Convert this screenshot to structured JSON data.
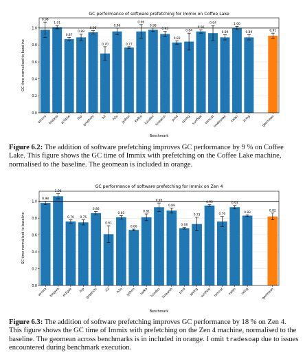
{
  "chart_data": [
    {
      "type": "bar",
      "title": "GC performance of software prefetching for Immix on Coffee Lake",
      "xlabel": "Benchmark",
      "ylabel": "GC time normalised to baseline",
      "ylim": [
        0,
        1.12
      ],
      "yticks": [
        "0.0",
        "0.2",
        "0.4",
        "0.6",
        "0.8",
        "1.0"
      ],
      "grid": true,
      "baseline": 1.0,
      "categories": [
        "avrora",
        "biojava",
        "eclipse",
        "fop",
        "graphchi",
        "h2",
        "h2o",
        "jython",
        "kafka",
        "luindex",
        "lusearch",
        "pmd",
        "spring",
        "sunflow",
        "tomcat",
        "tradesoap",
        "xalan",
        "zxing",
        "geomean"
      ],
      "values": [
        0.98,
        1.01,
        0.87,
        0.89,
        0.95,
        0.7,
        0.96,
        0.77,
        0.96,
        0.98,
        0.93,
        0.83,
        0.84,
        0.96,
        0.94,
        0.89,
        1.0,
        0.89,
        0.91
      ],
      "labels": [
        "0.98",
        "1.01",
        "0.87",
        "0.89",
        "0.95",
        "0.70",
        "0.96",
        "0.77",
        "0.96",
        "0.98",
        "0.93",
        "0.83",
        "0.84",
        "0.96",
        "0.94",
        "0.89",
        "1.00",
        "0.89",
        "0.91"
      ],
      "errors": [
        0.09,
        0.02,
        0.02,
        0.04,
        0.02,
        0.08,
        0.04,
        0.01,
        0.08,
        0.02,
        0.03,
        0.02,
        0.1,
        0.02,
        0.09,
        0.03,
        0.02,
        0.03,
        0.03
      ],
      "colors": {
        "bar": "#1f77b4",
        "highlight": "#ff7f0e",
        "baseline": "#000000"
      }
    },
    {
      "type": "bar",
      "title": "GC performance of software prefetching for Immix on Zen 4",
      "xlabel": "Benchmark",
      "ylabel": "GC time normalised to baseline",
      "ylim": [
        0,
        1.12
      ],
      "yticks": [
        "0.0",
        "0.2",
        "0.4",
        "0.6",
        "0.8",
        "1.0"
      ],
      "grid": true,
      "baseline": 1.0,
      "categories": [
        "avrora",
        "biojava",
        "eclipse",
        "fop",
        "graphchi",
        "h2",
        "h2o",
        "jython",
        "kafka",
        "luindex",
        "lusearch",
        "pmd",
        "spring",
        "sunflow",
        "tomcat",
        "xalan",
        "zxing",
        "geomean"
      ],
      "values": [
        0.98,
        1.06,
        0.76,
        0.75,
        0.86,
        0.61,
        0.81,
        0.66,
        0.81,
        0.93,
        0.89,
        0.68,
        0.73,
        0.95,
        0.76,
        0.93,
        0.83,
        0.82
      ],
      "labels": [
        "0.98",
        "1.06",
        "0.76",
        "0.75",
        "0.86",
        "0.61",
        "0.81",
        "0.66",
        "0.81",
        "0.93",
        "0.89",
        "0.68",
        "0.73",
        "0.95",
        "0.76",
        "0.93",
        "0.83",
        "0.82"
      ],
      "errors": [
        0.02,
        0.03,
        0.02,
        0.03,
        0.02,
        0.1,
        0.02,
        0.01,
        0.04,
        0.05,
        0.03,
        0.01,
        0.08,
        0.01,
        0.06,
        0.02,
        0.01,
        0.04
      ],
      "colors": {
        "bar": "#1f77b4",
        "highlight": "#ff7f0e",
        "baseline": "#000000"
      }
    }
  ],
  "captions": [
    {
      "label": "Figure 6.2:",
      "text": "The addition of software prefetching improves GC performance by 9 % on Coffee Lake. This figure shows the GC time of Immix with prefetching on the Coffee Lake machine, normalised to the baseline. The geomean is included in orange."
    },
    {
      "label": "Figure 6.3:",
      "text_a": "The addition of software prefetching improves GC performance by 18 % on Zen 4. This figure shows the GC time of Immix with prefetching on the Zen 4 machine, normalised to the baseline. The geomean across benchmarks is in included in orange. I omit ",
      "code": "tradesoap",
      "text_b": " due to issues encountered during benchmark execution."
    }
  ]
}
